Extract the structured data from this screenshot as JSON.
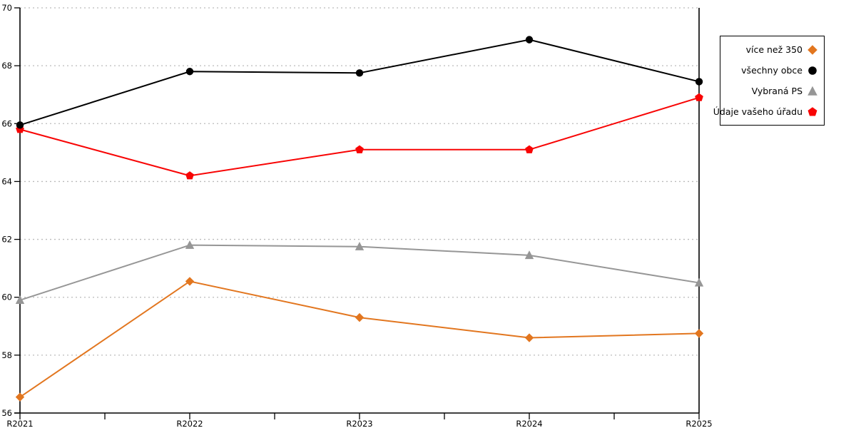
{
  "chart_data": {
    "type": "line",
    "title": "",
    "xlabel": "",
    "ylabel": "",
    "categories": [
      "R2021",
      "R2022",
      "R2023",
      "R2024",
      "R2025"
    ],
    "series": [
      {
        "name": "více než 350",
        "marker": "diamond",
        "color": "#E2761F",
        "values": [
          56.55,
          60.55,
          59.3,
          58.6,
          58.75
        ]
      },
      {
        "name": "všechny obce",
        "marker": "circle",
        "color": "#000000",
        "values": [
          65.95,
          67.8,
          67.75,
          68.9,
          67.45
        ]
      },
      {
        "name": "Vybraná PS",
        "marker": "triangle-up",
        "color": "#969696",
        "values": [
          59.9,
          61.8,
          61.75,
          61.45,
          60.5
        ]
      },
      {
        "name": "Údaje vašeho úřadu",
        "marker": "pentagon",
        "color": "#F80404",
        "values": [
          65.8,
          64.2,
          65.1,
          65.1,
          66.9
        ]
      }
    ],
    "ylim": [
      56,
      70
    ],
    "ytick_step": 2,
    "ytick_labels": [
      "56",
      "58",
      "60",
      "62",
      "64",
      "66",
      "68",
      "70"
    ],
    "grid": "horizontal-dashed",
    "gridline_color": "#BBBBBB",
    "axis_color": "#000000",
    "x_minor_ticks": true,
    "legend_position": "top-right"
  }
}
